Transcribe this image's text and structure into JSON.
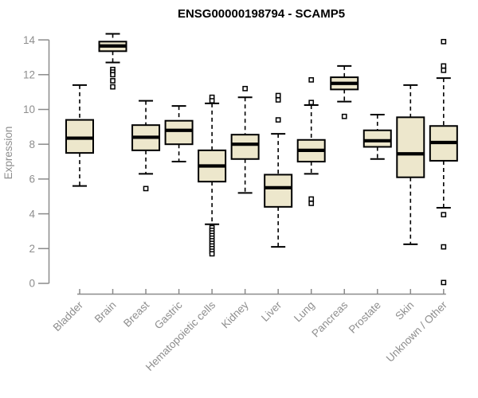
{
  "title": "ENSG00000198794 - SCAMP5",
  "colors": {
    "background": "#ffffff",
    "box_fill": "#ede7cc",
    "box_border": "#000000",
    "median_line": "#000000",
    "whisker": "#000000",
    "outlier_marker": "#000000",
    "axis": "#8b8b8b",
    "tick_text": "#8e8e8e",
    "title_text": "#000000"
  },
  "chart_data": {
    "type": "boxplot",
    "title": "ENSG00000198794 - SCAMP5",
    "xlabel": "",
    "ylabel": "Expression",
    "ylim": [
      0,
      14.6
    ],
    "yticks": [
      0,
      2,
      4,
      6,
      8,
      10,
      12,
      14
    ],
    "grid": false,
    "legend": false,
    "outlier_marker_shape": "open-square",
    "categories": [
      "Bladder",
      "Brain",
      "Breast",
      "Gastric",
      "Hematopoietic cells",
      "Kidney",
      "Liver",
      "Lung",
      "Pancreas",
      "Prostate",
      "Skin",
      "Unknown / Other"
    ],
    "boxes": [
      {
        "category": "Bladder",
        "whisker_low": 5.6,
        "q1": 7.5,
        "median": 8.35,
        "q3": 9.4,
        "whisker_high": 11.4,
        "outliers": []
      },
      {
        "category": "Brain",
        "whisker_low": 12.7,
        "q1": 13.35,
        "median": 13.65,
        "q3": 13.9,
        "whisker_high": 14.35,
        "outliers": [
          12.3,
          12.15,
          12.0,
          11.65,
          11.3
        ]
      },
      {
        "category": "Breast",
        "whisker_low": 6.3,
        "q1": 7.65,
        "median": 8.4,
        "q3": 9.1,
        "whisker_high": 10.5,
        "outliers": [
          5.45
        ]
      },
      {
        "category": "Gastric",
        "whisker_low": 7.0,
        "q1": 8.0,
        "median": 8.8,
        "q3": 9.35,
        "whisker_high": 10.2,
        "outliers": []
      },
      {
        "category": "Hematopoietic cells",
        "whisker_low": 3.4,
        "q1": 5.85,
        "median": 6.75,
        "q3": 7.65,
        "whisker_high": 10.35,
        "outliers": [
          10.7,
          10.5,
          3.2,
          3.05,
          2.9,
          2.75,
          2.6,
          2.45,
          2.3,
          2.15,
          2.0,
          1.85,
          1.7
        ]
      },
      {
        "category": "Kidney",
        "whisker_low": 5.2,
        "q1": 7.15,
        "median": 8.0,
        "q3": 8.55,
        "whisker_high": 10.7,
        "outliers": [
          11.2
        ]
      },
      {
        "category": "Liver",
        "whisker_low": 2.1,
        "q1": 4.4,
        "median": 5.5,
        "q3": 6.25,
        "whisker_high": 8.6,
        "outliers": [
          10.8,
          10.55,
          9.4
        ]
      },
      {
        "category": "Lung",
        "whisker_low": 6.3,
        "q1": 7.0,
        "median": 7.65,
        "q3": 8.25,
        "whisker_high": 10.25,
        "outliers": [
          11.7,
          10.4,
          4.85,
          4.6
        ]
      },
      {
        "category": "Pancreas",
        "whisker_low": 10.45,
        "q1": 11.15,
        "median": 11.5,
        "q3": 11.85,
        "whisker_high": 12.5,
        "outliers": [
          9.6
        ]
      },
      {
        "category": "Prostate",
        "whisker_low": 7.15,
        "q1": 7.85,
        "median": 8.2,
        "q3": 8.8,
        "whisker_high": 9.7,
        "outliers": []
      },
      {
        "category": "Skin",
        "whisker_low": 2.25,
        "q1": 6.1,
        "median": 7.45,
        "q3": 9.55,
        "whisker_high": 11.4,
        "outliers": []
      },
      {
        "category": "Unknown / Other",
        "whisker_low": 4.35,
        "q1": 7.05,
        "median": 8.1,
        "q3": 9.05,
        "whisker_high": 11.8,
        "outliers": [
          13.9,
          12.5,
          12.25,
          3.95,
          2.1,
          0.05
        ]
      }
    ]
  }
}
